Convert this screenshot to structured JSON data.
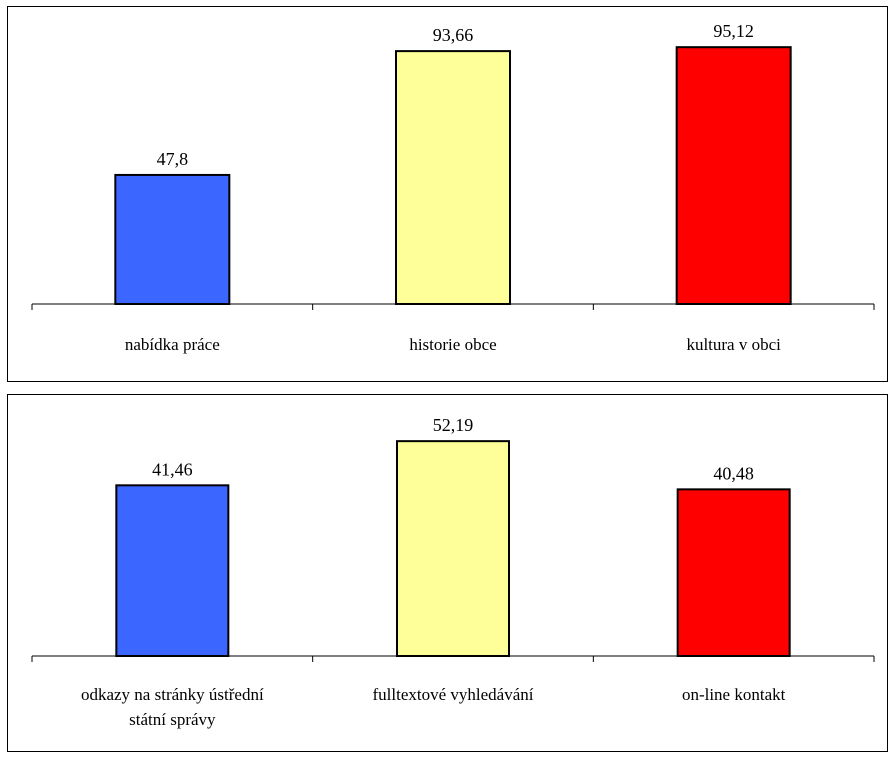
{
  "chart_data": [
    {
      "type": "bar",
      "categories": [
        "nabídka práce",
        "historie  obce",
        "kultura  v  obci"
      ],
      "category_lines": [
        [
          "nabídka práce"
        ],
        [
          "historie  obce"
        ],
        [
          "kultura  v  obci"
        ]
      ],
      "values": [
        47.8,
        93.66,
        95.12
      ],
      "data_labels": [
        "47,8",
        "93,66",
        "95,12"
      ],
      "colors": [
        "#3b66ff",
        "#ffff99",
        "#ff0000"
      ],
      "ylim": [
        0,
        100
      ],
      "grid": false,
      "legend": "none"
    },
    {
      "type": "bar",
      "categories": [
        "odkazy na stránky ústřední státní správy",
        "fulltextové  vyhledávání",
        "on-line  kontakt"
      ],
      "category_lines": [
        [
          "odkazy  na  stránky  ústřední",
          "státní  správy"
        ],
        [
          "fulltextové  vyhledávání"
        ],
        [
          "on-line  kontakt"
        ]
      ],
      "values": [
        41.46,
        52.19,
        40.48
      ],
      "data_labels": [
        "41,46",
        "52,19",
        "40,48"
      ],
      "colors": [
        "#3b66ff",
        "#ffff99",
        "#ff0000"
      ],
      "ylim": [
        0,
        60
      ],
      "grid": false,
      "legend": "none"
    }
  ]
}
